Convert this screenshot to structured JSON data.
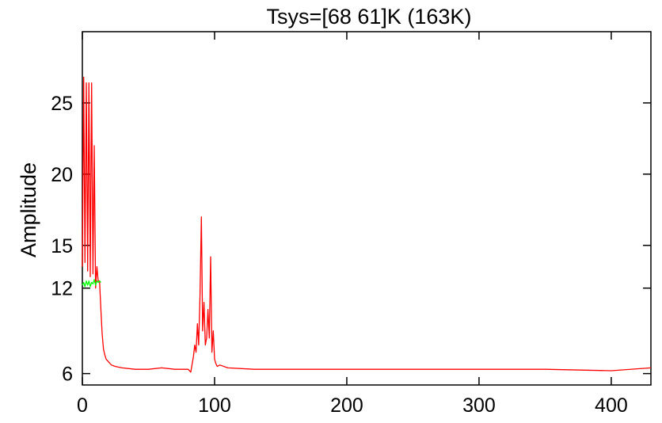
{
  "chart_data": {
    "type": "line",
    "title": "Tsys=[68 61]K (163K)",
    "xlabel": "",
    "ylabel": "Amplitude",
    "xlim": [
      0,
      430
    ],
    "ylim": [
      5.2,
      30
    ],
    "x_ticks": [
      0,
      100,
      200,
      300,
      400
    ],
    "x_tick_labels": [
      "0",
      "100",
      "200",
      "300",
      "400"
    ],
    "y_ticks": [
      6,
      12,
      15,
      20,
      25
    ],
    "y_tick_labels": [
      "6",
      "12",
      "15",
      "20",
      "25"
    ],
    "grid": false,
    "legend": "none",
    "series": [
      {
        "color": "#ff0000",
        "x": [
          0,
          1,
          2,
          3,
          4,
          5,
          6,
          7,
          8,
          9,
          10,
          11,
          12,
          13,
          14,
          15,
          16,
          17,
          18,
          20,
          22,
          25,
          30,
          40,
          50,
          60,
          70,
          80,
          82,
          84,
          85,
          86,
          87,
          88,
          89,
          90,
          91,
          92,
          93,
          94,
          95,
          96,
          97,
          98,
          99,
          100,
          101,
          102,
          104,
          110,
          130,
          160,
          200,
          250,
          300,
          350,
          400,
          430
        ],
        "y": [
          13.5,
          26.8,
          13.8,
          26.4,
          13.2,
          26.4,
          12.8,
          26.4,
          13.0,
          22.0,
          12.0,
          13.5,
          12.5,
          12.5,
          10.5,
          8.8,
          7.7,
          7.3,
          7.0,
          6.8,
          6.6,
          6.5,
          6.4,
          6.3,
          6.3,
          6.4,
          6.3,
          6.3,
          6.1,
          7.2,
          8.0,
          7.5,
          9.5,
          8.0,
          11.5,
          17.0,
          9.0,
          11.0,
          8.0,
          8.5,
          10.5,
          8.5,
          14.2,
          7.5,
          9.0,
          7.0,
          6.7,
          6.5,
          6.6,
          6.4,
          6.3,
          6.3,
          6.3,
          6.3,
          6.3,
          6.3,
          6.2,
          6.4
        ]
      },
      {
        "color": "#00ff00",
        "x": [
          0,
          1,
          2,
          3,
          4,
          5,
          6,
          7,
          8,
          9,
          10,
          11,
          12,
          13,
          14
        ],
        "y": [
          12.2,
          12.4,
          12.1,
          12.5,
          12.2,
          12.5,
          12.1,
          12.4,
          12.3,
          12.6,
          12.2,
          12.5,
          12.4,
          12.5,
          12.4
        ]
      }
    ]
  }
}
